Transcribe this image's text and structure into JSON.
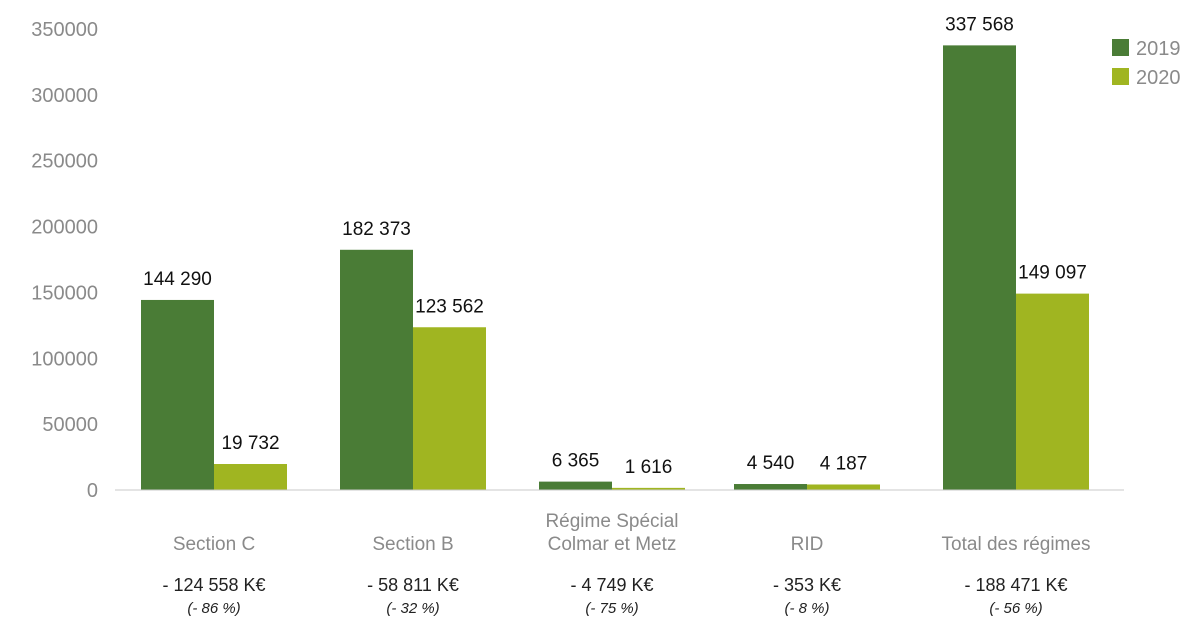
{
  "chart_data": {
    "type": "bar",
    "title": "",
    "xlabel": "",
    "ylabel": "",
    "ylim": [
      0,
      350000
    ],
    "yticks": [
      0,
      50000,
      100000,
      150000,
      200000,
      250000,
      300000,
      350000
    ],
    "grid": false,
    "legend_position": "top-right",
    "categories": [
      [
        "Section C"
      ],
      [
        "Section B"
      ],
      [
        "Régime Spécial",
        "Colmar et Metz"
      ],
      [
        "RID"
      ],
      [
        "Total des régimes"
      ]
    ],
    "series": [
      {
        "name": "2019",
        "color": "#4a7c36",
        "values": [
          144290,
          182373,
          6365,
          4540,
          337568
        ],
        "labels": [
          "144 290",
          "182 373",
          "6 365",
          "4 540",
          "337 568"
        ]
      },
      {
        "name": "2020",
        "color": "#a0b521",
        "values": [
          19732,
          123562,
          1616,
          4187,
          149097
        ],
        "labels": [
          "19 732",
          "123 562",
          "1 616",
          "4 187",
          "149 097"
        ]
      }
    ],
    "differences": [
      {
        "amount": "- 124 558 K€",
        "percent": "(- 86 %)"
      },
      {
        "amount": "- 58 811 K€",
        "percent": "(- 32 %)"
      },
      {
        "amount": "- 4 749 K€",
        "percent": "(- 75 %)"
      },
      {
        "amount": "- 353 K€",
        "percent": "(- 8 %)"
      },
      {
        "amount": "- 188 471 K€",
        "percent": "(- 56 %)"
      }
    ]
  },
  "colors": {
    "axis_line": "#c8c8c8",
    "tick_text": "#8a8a8a"
  }
}
